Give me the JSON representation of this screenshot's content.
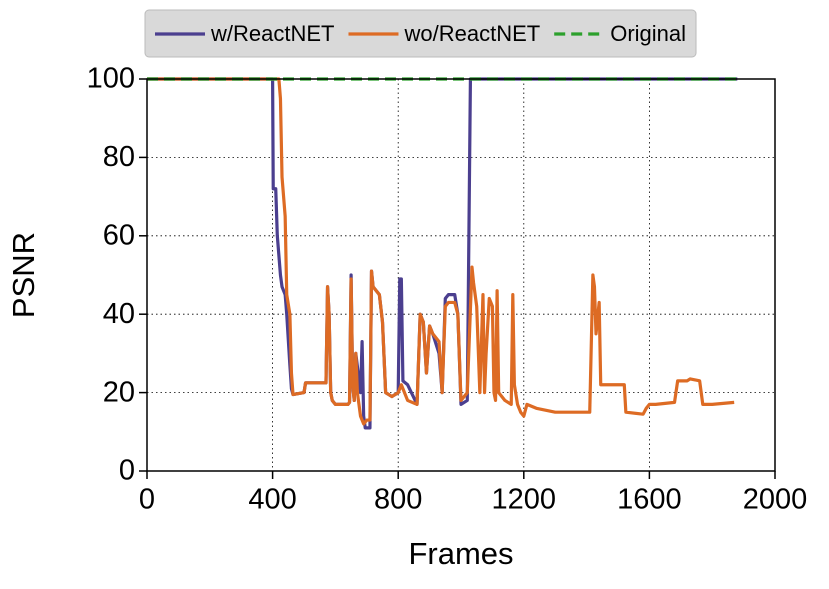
{
  "chart_data": {
    "type": "line",
    "xlabel": "Frames",
    "ylabel": "PSNR",
    "xlim": [
      0,
      2000
    ],
    "ylim": [
      0,
      100
    ],
    "xticks": [
      0,
      400,
      800,
      1200,
      1600,
      2000
    ],
    "yticks": [
      0,
      20,
      40,
      60,
      80,
      100
    ],
    "grid": true,
    "legend": "top",
    "series": [
      {
        "name": "w/ReactNET",
        "color": "#4b3f8f",
        "style": "solid",
        "x": [
          0,
          400,
          402,
          410,
          415,
          425,
          430,
          440,
          445,
          455,
          460,
          465,
          500,
          505,
          570,
          575,
          580,
          585,
          590,
          600,
          640,
          645,
          650,
          655,
          660,
          665,
          680,
          685,
          690,
          695,
          700,
          710,
          715,
          720,
          740,
          750,
          760,
          780,
          800,
          805,
          810,
          815,
          830,
          860,
          870,
          880,
          890,
          900,
          910,
          930,
          940,
          950,
          960,
          980,
          990,
          1000,
          1020,
          1030,
          1880
        ],
        "values": [
          100,
          100,
          72,
          72,
          60,
          50,
          47,
          45,
          40,
          27,
          21,
          19.5,
          20,
          22.5,
          22.5,
          47,
          40,
          20,
          18,
          17,
          17,
          17.5,
          50,
          22,
          18,
          30,
          20,
          33,
          14,
          11,
          11,
          11,
          51,
          47,
          45,
          38,
          20,
          19,
          20,
          49,
          49,
          23,
          22,
          17,
          40,
          38,
          25,
          37,
          35,
          30,
          20,
          44,
          45,
          45,
          40,
          17,
          18,
          100,
          100
        ]
      },
      {
        "name": "wo/ReactNET",
        "color": "#dd6b24",
        "style": "solid",
        "x": [
          0,
          420,
          425,
          430,
          440,
          445,
          455,
          460,
          465,
          500,
          505,
          570,
          575,
          580,
          585,
          590,
          600,
          640,
          645,
          650,
          655,
          660,
          665,
          670,
          680,
          690,
          700,
          710,
          715,
          720,
          740,
          750,
          760,
          780,
          790,
          800,
          810,
          830,
          860,
          870,
          880,
          890,
          900,
          910,
          930,
          940,
          950,
          960,
          980,
          990,
          1000,
          1020,
          1035,
          1040,
          1050,
          1060,
          1070,
          1075,
          1080,
          1090,
          1100,
          1105,
          1110,
          1115,
          1120,
          1140,
          1160,
          1165,
          1170,
          1180,
          1190,
          1200,
          1210,
          1240,
          1300,
          1410,
          1420,
          1425,
          1430,
          1440,
          1445,
          1520,
          1525,
          1580,
          1590,
          1600,
          1620,
          1680,
          1690,
          1720,
          1730,
          1760,
          1770,
          1800,
          1870
        ],
        "values": [
          100,
          100,
          95,
          75,
          65,
          45,
          40,
          25,
          19.5,
          20,
          22.5,
          22.5,
          47,
          40,
          20,
          18,
          17,
          17,
          17.5,
          49,
          22,
          18,
          30,
          20,
          14,
          12,
          13,
          13,
          51,
          47,
          45,
          38,
          20,
          19,
          19.5,
          20,
          22,
          18,
          17,
          40,
          38,
          25,
          37,
          35,
          33,
          20,
          42,
          43,
          43,
          40,
          18,
          20,
          52,
          48,
          42,
          20,
          45,
          20,
          30,
          44,
          42,
          20,
          18,
          46,
          20,
          18,
          17,
          45,
          22,
          17,
          15,
          14,
          17,
          16,
          15,
          15,
          50,
          47,
          35,
          43,
          22,
          22,
          15,
          14.5,
          16,
          17,
          17,
          17.5,
          23,
          23,
          23.5,
          23,
          17,
          17,
          17.5
        ]
      },
      {
        "name": "Original",
        "color": "#2ca02c",
        "style": "dashed",
        "x": [
          0,
          1880
        ],
        "values": [
          100,
          100
        ]
      }
    ]
  }
}
